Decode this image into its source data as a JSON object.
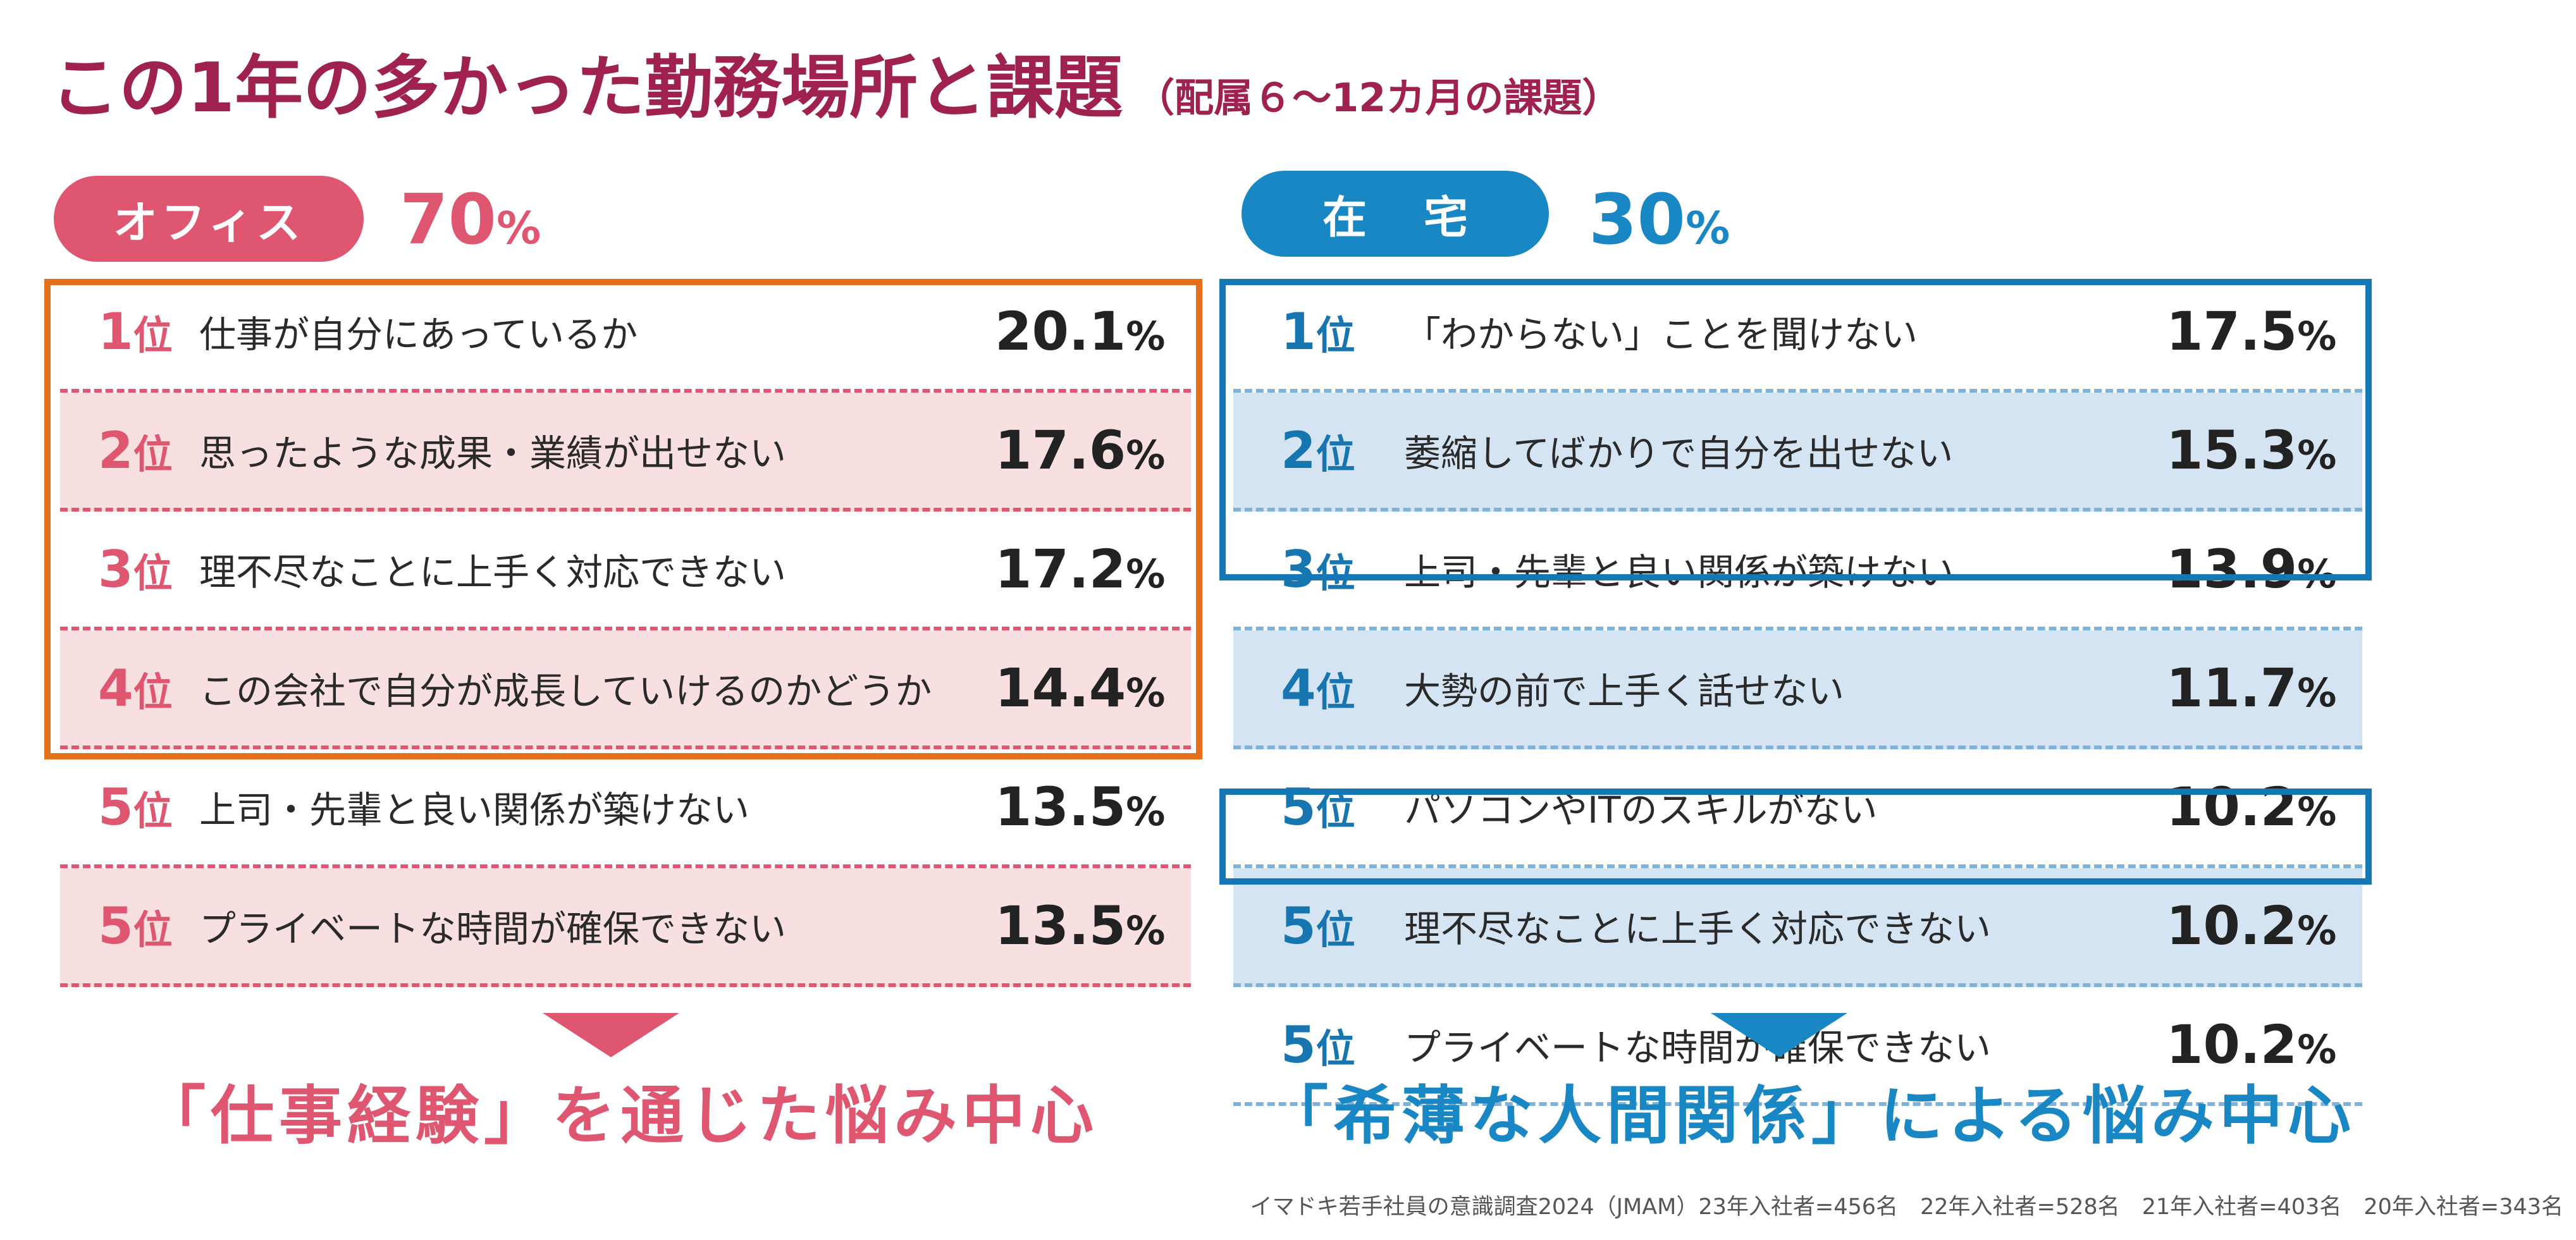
{
  "title": {
    "main": "この1年の多かった勤務場所と課題",
    "sub": "（配属６～12カ月の課題）"
  },
  "office": {
    "badge": "オフィス",
    "percent": "70",
    "percent_unit": "%",
    "items": [
      {
        "rank": "1",
        "rank_suffix": "位",
        "label": "仕事が自分にあっているか",
        "value": "20.1",
        "unit": "%"
      },
      {
        "rank": "2",
        "rank_suffix": "位",
        "label": "思ったような成果・業績が出せない",
        "value": "17.6",
        "unit": "%"
      },
      {
        "rank": "3",
        "rank_suffix": "位",
        "label": "理不尽なことに上手く対応できない",
        "value": "17.2",
        "unit": "%"
      },
      {
        "rank": "4",
        "rank_suffix": "位",
        "label": "この会社で自分が成長していけるのかどうか",
        "value": "14.4",
        "unit": "%"
      },
      {
        "rank": "5",
        "rank_suffix": "位",
        "label": "上司・先輩と良い関係が築けない",
        "value": "13.5",
        "unit": "%"
      },
      {
        "rank": "5",
        "rank_suffix": "位",
        "label": "プライベートな時間が確保できない",
        "value": "13.5",
        "unit": "%"
      }
    ],
    "summary": "「仕事経験」を通じた悩み中心",
    "color": "#de566f",
    "highlight_color": "#e46f1b"
  },
  "home": {
    "badge": "在宅",
    "percent": "30",
    "percent_unit": "%",
    "items": [
      {
        "rank": "1",
        "rank_suffix": "位",
        "label": "「わからない」ことを聞けない",
        "value": "17.5",
        "unit": "%"
      },
      {
        "rank": "2",
        "rank_suffix": "位",
        "label": "萎縮してばかりで自分を出せない",
        "value": "15.3",
        "unit": "%"
      },
      {
        "rank": "3",
        "rank_suffix": "位",
        "label": "上司・先輩と良い関係が築けない",
        "value": "13.9",
        "unit": "%"
      },
      {
        "rank": "4",
        "rank_suffix": "位",
        "label": "大勢の前で上手く話せない",
        "value": "11.7",
        "unit": "%"
      },
      {
        "rank": "5",
        "rank_suffix": "位",
        "label": "パソコンやITのスキルがない",
        "value": "10.2",
        "unit": "%"
      },
      {
        "rank": "5",
        "rank_suffix": "位",
        "label": "理不尽なことに上手く対応できない",
        "value": "10.2",
        "unit": "%"
      },
      {
        "rank": "5",
        "rank_suffix": "位",
        "label": "プライベートな時間が確保できない",
        "value": "10.2",
        "unit": "%"
      }
    ],
    "summary": "「希薄な人間関係」による悩み中心",
    "color": "#1887c4",
    "highlight_color": "#1677b7"
  },
  "source": "イマドキ若手社員の意識調査2024（JMAM）23年入社者=456名　22年入社者=528名　21年入社者=403名　20年入社者=343名"
}
